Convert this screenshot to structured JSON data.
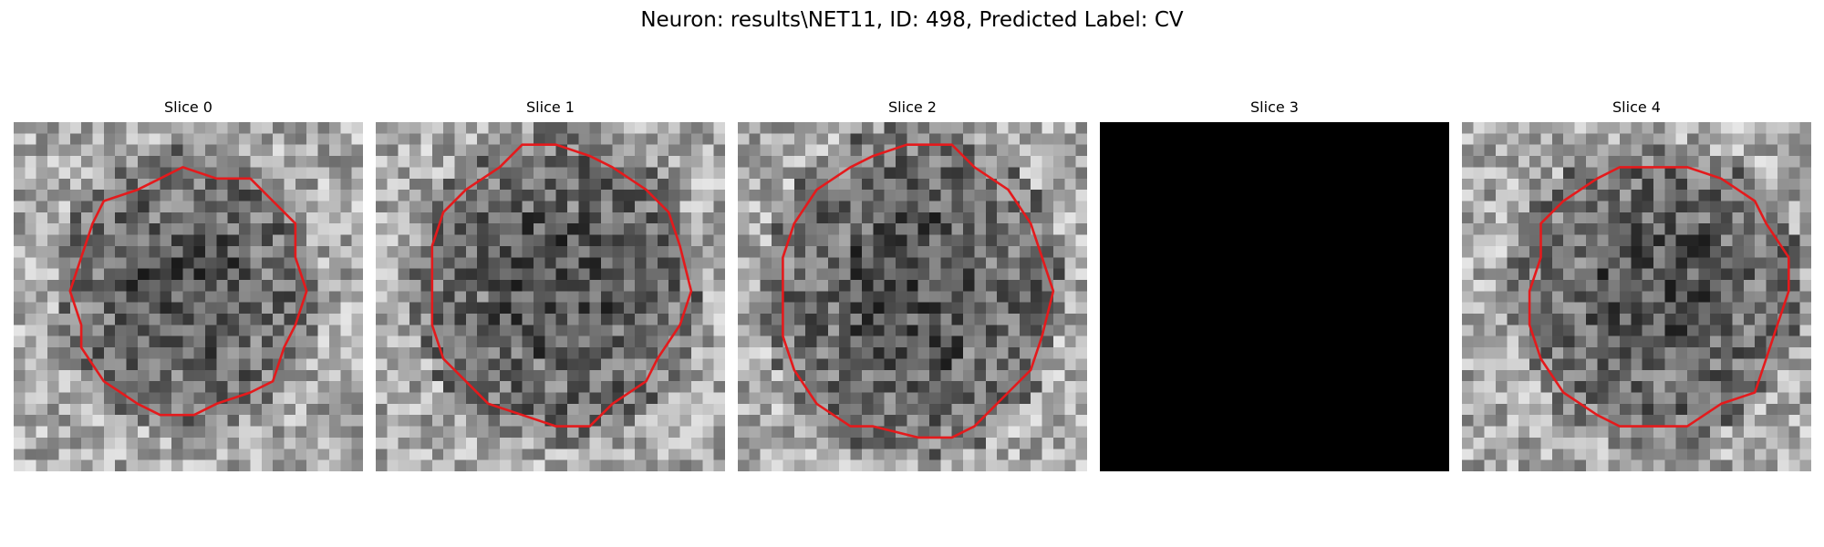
{
  "figure": {
    "title": "Neuron: results\\NET11, ID: 498, Predicted Label: CV"
  },
  "contour_color": "#e41a1c",
  "slices": [
    {
      "label": "Slice 0",
      "blank": false
    },
    {
      "label": "Slice 1",
      "blank": false
    },
    {
      "label": "Slice 2",
      "blank": false
    },
    {
      "label": "Slice 3",
      "blank": true
    },
    {
      "label": "Slice 4",
      "blank": false
    }
  ]
}
